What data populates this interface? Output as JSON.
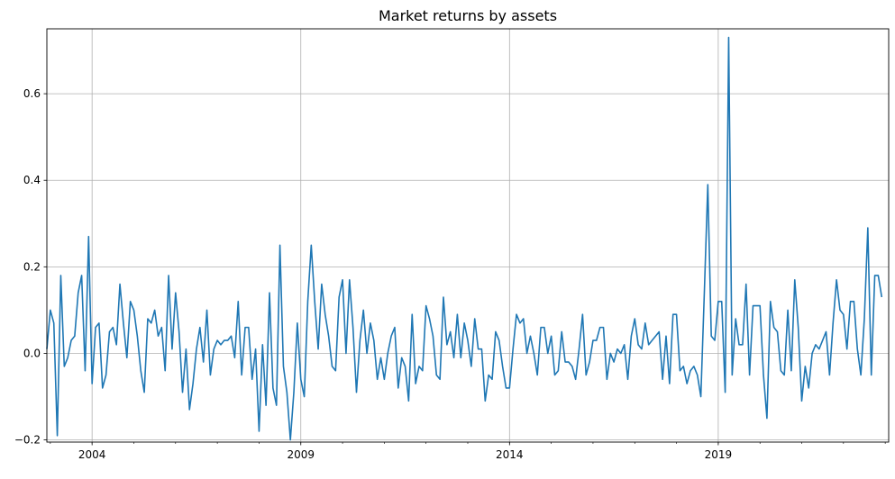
{
  "chart_data": {
    "type": "line",
    "title": "Market returns by assets",
    "xlabel": "",
    "ylabel": "",
    "x_start": "2002-12",
    "x_end": "2023-02",
    "x_frequency": "monthly",
    "xlim": [
      "2002-12",
      "2023-02"
    ],
    "ylim": [
      -0.205,
      0.75
    ],
    "x_ticks": [
      {
        "date": "2004-01",
        "label": "2004"
      },
      {
        "date": "2009-01",
        "label": "2009"
      },
      {
        "date": "2014-01",
        "label": "2014"
      },
      {
        "date": "2019-01",
        "label": "2019"
      }
    ],
    "y_ticks": [
      {
        "value": -0.2,
        "label": "−0.2"
      },
      {
        "value": 0.0,
        "label": "0.0"
      },
      {
        "value": 0.2,
        "label": "0.2"
      },
      {
        "value": 0.4,
        "label": "0.4"
      },
      {
        "value": 0.6,
        "label": "0.6"
      }
    ],
    "grid": true,
    "legend": "none",
    "color": "#1f77b4",
    "series": [
      {
        "values": [
          0.01,
          0.1,
          0.07,
          -0.19,
          0.18,
          -0.03,
          -0.01,
          0.03,
          0.04,
          0.14,
          0.18,
          -0.04,
          0.27,
          -0.07,
          0.06,
          0.07,
          -0.08,
          -0.05,
          0.05,
          0.06,
          0.02,
          0.16,
          0.07,
          -0.01,
          0.12,
          0.1,
          0.04,
          -0.04,
          -0.09,
          0.08,
          0.07,
          0.1,
          0.04,
          0.06,
          -0.04,
          0.18,
          0.01,
          0.14,
          0.05,
          -0.09,
          0.01,
          -0.13,
          -0.07,
          0.01,
          0.06,
          -0.02,
          0.1,
          -0.05,
          0.01,
          0.03,
          0.02,
          0.03,
          0.03,
          0.04,
          -0.01,
          0.12,
          -0.05,
          0.06,
          0.06,
          -0.06,
          0.01,
          -0.18,
          0.02,
          -0.12,
          0.14,
          -0.08,
          -0.12,
          0.25,
          -0.03,
          -0.09,
          -0.2,
          -0.09,
          0.07,
          -0.06,
          -0.1,
          0.12,
          0.25,
          0.12,
          0.01,
          0.16,
          0.09,
          0.04,
          -0.03,
          -0.04,
          0.13,
          0.17,
          0.0,
          0.17,
          0.06,
          -0.09,
          0.03,
          0.1,
          0.0,
          0.07,
          0.03,
          -0.06,
          -0.01,
          -0.06,
          0.0,
          0.04,
          0.06,
          -0.08,
          -0.01,
          -0.03,
          -0.11,
          0.09,
          -0.07,
          -0.03,
          -0.04,
          0.11,
          0.08,
          0.04,
          -0.05,
          -0.06,
          0.13,
          0.02,
          0.05,
          -0.01,
          0.09,
          -0.01,
          0.07,
          0.03,
          -0.03,
          0.08,
          0.01,
          0.01,
          -0.11,
          -0.05,
          -0.06,
          0.05,
          0.03,
          -0.03,
          -0.08,
          -0.08,
          0.01,
          0.09,
          0.07,
          0.08,
          0.0,
          0.04,
          0.0,
          -0.05,
          0.06,
          0.06,
          0.0,
          0.04,
          -0.05,
          -0.04,
          0.05,
          -0.02,
          -0.02,
          -0.03,
          -0.06,
          0.01,
          0.09,
          -0.05,
          -0.02,
          0.03,
          0.03,
          0.06,
          0.06,
          -0.06,
          0.0,
          -0.02,
          0.01,
          0.0,
          0.02,
          -0.06,
          0.04,
          0.08,
          0.02,
          0.01,
          0.07,
          0.02,
          0.03,
          0.04,
          0.05,
          -0.06,
          0.04,
          -0.07,
          0.09,
          0.09,
          -0.04,
          -0.03,
          -0.07,
          -0.04,
          -0.03,
          -0.05,
          -0.1,
          0.14,
          0.39,
          0.04,
          0.03,
          0.12,
          0.12,
          -0.09,
          0.73,
          -0.05,
          0.08,
          0.02,
          0.02,
          0.16,
          -0.05,
          0.11,
          0.11,
          0.11,
          -0.05,
          -0.15,
          0.12,
          0.06,
          0.05,
          -0.04,
          -0.05,
          0.1,
          -0.04,
          0.17,
          0.06,
          -0.11,
          -0.03,
          -0.08,
          0.0,
          0.02,
          0.01,
          0.03,
          0.05,
          -0.05,
          0.07,
          0.17,
          0.1,
          0.09,
          0.01,
          0.12,
          0.12,
          0.01,
          -0.05,
          0.08,
          0.29,
          -0.05,
          0.18,
          0.18,
          0.13
        ]
      }
    ]
  }
}
